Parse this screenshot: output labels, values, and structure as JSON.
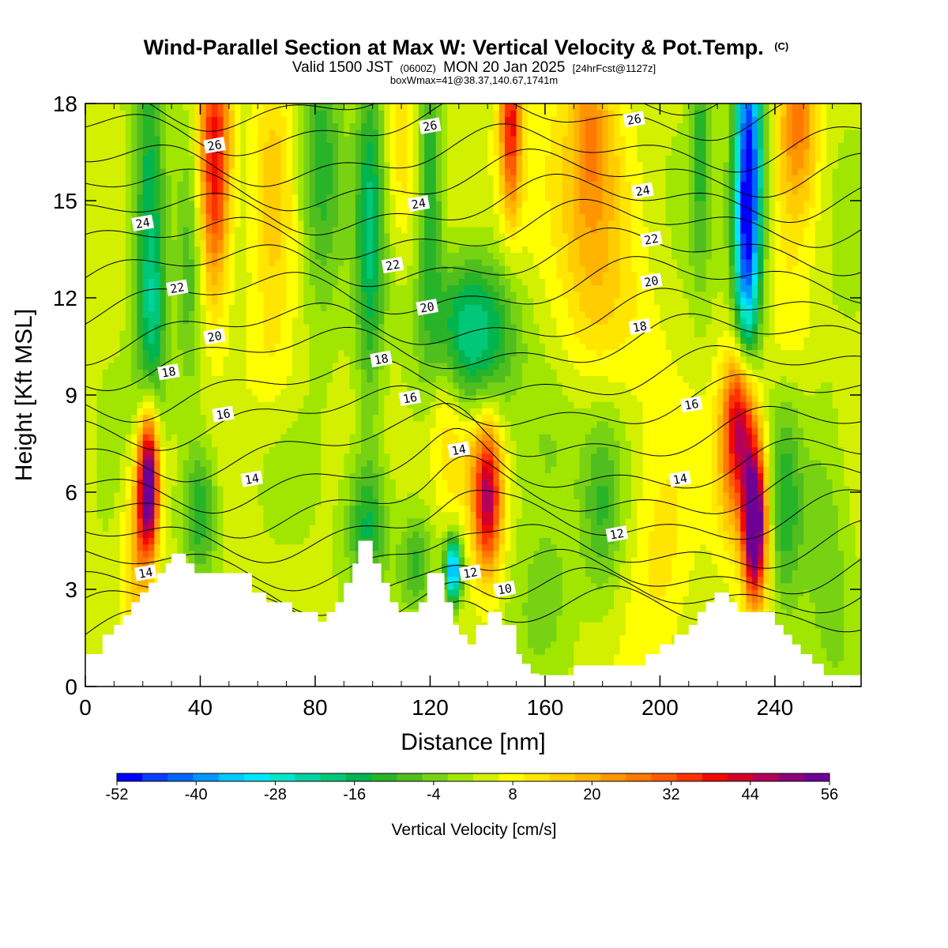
{
  "chart_data": {
    "type": "heatmap",
    "title": "Wind-Parallel Section at Max W: Vertical Velocity & Pot.Temp.",
    "title_mark": "(C)",
    "subtitle_valid": "Valid 1500 JST",
    "subtitle_utc": "(0600Z)",
    "subtitle_date": "MON 20 Jan 2025",
    "subtitle_fcst": "[24hrFcst@1127z]",
    "subtitle_box": "boxWmax=41@38.37,140.67,1741m",
    "xlabel": "Distance [nm]",
    "ylabel": "Height [Kft MSL]",
    "xlim": [
      0,
      270
    ],
    "ylim": [
      0,
      18
    ],
    "x_ticks": [
      0,
      40,
      80,
      120,
      160,
      200,
      240
    ],
    "x_tick_labels": [
      "0",
      "40",
      "80",
      "120",
      "160",
      "200",
      "240"
    ],
    "y_ticks": [
      0,
      3,
      6,
      9,
      12,
      15,
      18
    ],
    "y_tick_labels": [
      "0",
      "3",
      "6",
      "9",
      "12",
      "15",
      "18"
    ],
    "colorbar": {
      "title": "Vertical Velocity [cm/s]",
      "min": -52,
      "max": 56,
      "step": 4,
      "tick_values": [
        -52,
        -40,
        -28,
        -16,
        -4,
        8,
        20,
        32,
        44,
        56
      ],
      "tick_labels": [
        "-52",
        "-40",
        "-28",
        "-16",
        "-4",
        "8",
        "20",
        "32",
        "44",
        "56"
      ],
      "colors": [
        "#0000ff",
        "#0a3cff",
        "#0066ff",
        "#0096ff",
        "#00c8ff",
        "#00e6ff",
        "#00e6c8",
        "#00d2a0",
        "#00c878",
        "#00b450",
        "#28b428",
        "#50be1e",
        "#78d214",
        "#a0e600",
        "#d2f000",
        "#ffff00",
        "#ffe600",
        "#ffcd00",
        "#ffb400",
        "#ff9600",
        "#ff7800",
        "#ff5a00",
        "#ff3200",
        "#f00a00",
        "#d20028",
        "#b4005a",
        "#8c0078",
        "#6e0096"
      ]
    },
    "terrain": [
      [
        0,
        1.0
      ],
      [
        6,
        1.0
      ],
      [
        6,
        1.6
      ],
      [
        10,
        1.6
      ],
      [
        10,
        1.9
      ],
      [
        13,
        1.9
      ],
      [
        13,
        2.2
      ],
      [
        16,
        2.2
      ],
      [
        16,
        2.6
      ],
      [
        19,
        2.6
      ],
      [
        19,
        2.9
      ],
      [
        22,
        2.9
      ],
      [
        22,
        3.2
      ],
      [
        25,
        3.2
      ],
      [
        25,
        3.5
      ],
      [
        28,
        3.5
      ],
      [
        28,
        3.8
      ],
      [
        30,
        3.8
      ],
      [
        30,
        4.1
      ],
      [
        35,
        4.1
      ],
      [
        35,
        3.8
      ],
      [
        38,
        3.8
      ],
      [
        38,
        3.5
      ],
      [
        58,
        3.5
      ],
      [
        58,
        2.9
      ],
      [
        63,
        2.9
      ],
      [
        63,
        2.6
      ],
      [
        72,
        2.6
      ],
      [
        72,
        2.3
      ],
      [
        81,
        2.3
      ],
      [
        81,
        2.0
      ],
      [
        84,
        2.0
      ],
      [
        84,
        2.3
      ],
      [
        87,
        2.3
      ],
      [
        87,
        2.6
      ],
      [
        90,
        2.6
      ],
      [
        90,
        3.2
      ],
      [
        93,
        3.2
      ],
      [
        93,
        3.8
      ],
      [
        95,
        3.8
      ],
      [
        95,
        4.5
      ],
      [
        100,
        4.5
      ],
      [
        100,
        3.8
      ],
      [
        103,
        3.8
      ],
      [
        103,
        3.2
      ],
      [
        106,
        3.2
      ],
      [
        106,
        2.6
      ],
      [
        109,
        2.6
      ],
      [
        109,
        2.3
      ],
      [
        116,
        2.3
      ],
      [
        116,
        2.6
      ],
      [
        119,
        2.6
      ],
      [
        119,
        3.5
      ],
      [
        125,
        3.5
      ],
      [
        125,
        2.6
      ],
      [
        128,
        2.6
      ],
      [
        128,
        1.9
      ],
      [
        130,
        1.9
      ],
      [
        130,
        1.6
      ],
      [
        133,
        1.6
      ],
      [
        133,
        1.3
      ],
      [
        136,
        1.3
      ],
      [
        136,
        1.9
      ],
      [
        140,
        1.9
      ],
      [
        140,
        2.3
      ],
      [
        145,
        2.3
      ],
      [
        145,
        1.9
      ],
      [
        150,
        1.9
      ],
      [
        150,
        1.0
      ],
      [
        152,
        1.0
      ],
      [
        152,
        0.7
      ],
      [
        155,
        0.7
      ],
      [
        155,
        0.4
      ],
      [
        158,
        0.4
      ],
      [
        158,
        0.35
      ],
      [
        170,
        0.35
      ],
      [
        170,
        0.65
      ],
      [
        195,
        0.65
      ],
      [
        195,
        1.0
      ],
      [
        200,
        1.0
      ],
      [
        200,
        1.3
      ],
      [
        205,
        1.3
      ],
      [
        205,
        1.6
      ],
      [
        210,
        1.6
      ],
      [
        210,
        1.9
      ],
      [
        213,
        1.9
      ],
      [
        213,
        2.3
      ],
      [
        216,
        2.3
      ],
      [
        216,
        2.6
      ],
      [
        219,
        2.6
      ],
      [
        219,
        2.9
      ],
      [
        224,
        2.9
      ],
      [
        224,
        2.6
      ],
      [
        227,
        2.6
      ],
      [
        227,
        2.3
      ],
      [
        240,
        2.3
      ],
      [
        240,
        1.9
      ],
      [
        243,
        1.9
      ],
      [
        243,
        1.6
      ],
      [
        246,
        1.6
      ],
      [
        246,
        1.3
      ],
      [
        249,
        1.3
      ],
      [
        249,
        1.0
      ],
      [
        253,
        1.0
      ],
      [
        253,
        0.7
      ],
      [
        257,
        0.7
      ],
      [
        257,
        0.35
      ],
      [
        270,
        0.35
      ]
    ],
    "w_features": [
      {
        "x": 22,
        "y": 6.3,
        "sx": 2.6,
        "sy": 1.6,
        "amp": 62
      },
      {
        "x": 18,
        "y": 4.5,
        "sx": 3.5,
        "sy": 2.0,
        "amp": 16
      },
      {
        "x": 22,
        "y": 14.5,
        "sx": 4.0,
        "sy": 5.0,
        "amp": -20
      },
      {
        "x": 24,
        "y": 11.5,
        "sx": 3.0,
        "sy": 2.0,
        "amp": -10
      },
      {
        "x": 45,
        "y": 17.0,
        "sx": 4.0,
        "sy": 2.5,
        "amp": 34
      },
      {
        "x": 45,
        "y": 14.0,
        "sx": 3.5,
        "sy": 2.0,
        "amp": 14
      },
      {
        "x": 40,
        "y": 5.5,
        "sx": 4.0,
        "sy": 1.5,
        "amp": -18
      },
      {
        "x": 36,
        "y": 12.5,
        "sx": 3.0,
        "sy": 3.0,
        "amp": -10
      },
      {
        "x": 65,
        "y": 15.5,
        "sx": 5.0,
        "sy": 3.0,
        "amp": 12
      },
      {
        "x": 65,
        "y": 10.0,
        "sx": 8.0,
        "sy": 1.5,
        "amp": 5
      },
      {
        "x": 82,
        "y": 16.0,
        "sx": 5.0,
        "sy": 3.0,
        "amp": -16
      },
      {
        "x": 99,
        "y": 14.0,
        "sx": 3.5,
        "sy": 4.0,
        "amp": -20
      },
      {
        "x": 98,
        "y": 5.0,
        "sx": 5.0,
        "sy": 1.5,
        "amp": -18
      },
      {
        "x": 110,
        "y": 16.5,
        "sx": 4.0,
        "sy": 2.0,
        "amp": 10
      },
      {
        "x": 120,
        "y": 15.5,
        "sx": 3.0,
        "sy": 3.0,
        "amp": -18
      },
      {
        "x": 128,
        "y": 3.6,
        "sx": 2.0,
        "sy": 0.7,
        "amp": -44
      },
      {
        "x": 115,
        "y": 3.8,
        "sx": 4.0,
        "sy": 1.0,
        "amp": -14
      },
      {
        "x": 125,
        "y": 9.0,
        "sx": 4.0,
        "sy": 1.5,
        "amp": 8
      },
      {
        "x": 135,
        "y": 11.0,
        "sx": 11.0,
        "sy": 1.7,
        "amp": -26
      },
      {
        "x": 140,
        "y": 5.8,
        "sx": 3.5,
        "sy": 1.6,
        "amp": 44
      },
      {
        "x": 130,
        "y": 7.0,
        "sx": 7.0,
        "sy": 1.5,
        "amp": 12
      },
      {
        "x": 148,
        "y": 17.5,
        "sx": 2.5,
        "sy": 2.0,
        "amp": 34
      },
      {
        "x": 155,
        "y": 15.0,
        "sx": 10.0,
        "sy": 3.0,
        "amp": 8
      },
      {
        "x": 176,
        "y": 15.5,
        "sx": 8.0,
        "sy": 3.0,
        "amp": 16
      },
      {
        "x": 176,
        "y": 17.5,
        "sx": 4.0,
        "sy": 1.5,
        "amp": 10
      },
      {
        "x": 160,
        "y": 7.5,
        "sx": 8.0,
        "sy": 2.0,
        "amp": -8
      },
      {
        "x": 180,
        "y": 5.5,
        "sx": 5.0,
        "sy": 2.0,
        "amp": -12
      },
      {
        "x": 160,
        "y": 3.0,
        "sx": 7.0,
        "sy": 1.5,
        "amp": -6
      },
      {
        "x": 200,
        "y": 4.0,
        "sx": 8.0,
        "sy": 3.0,
        "amp": 8
      },
      {
        "x": 214,
        "y": 17.0,
        "sx": 2.5,
        "sy": 3.0,
        "amp": -14
      },
      {
        "x": 231,
        "y": 16.5,
        "sx": 3.5,
        "sy": 3.5,
        "amp": -48
      },
      {
        "x": 230,
        "y": 13.0,
        "sx": 3.0,
        "sy": 2.5,
        "amp": -26
      },
      {
        "x": 233,
        "y": 5.0,
        "sx": 2.8,
        "sy": 1.6,
        "amp": 66
      },
      {
        "x": 228,
        "y": 8.3,
        "sx": 4.0,
        "sy": 1.6,
        "amp": 38
      },
      {
        "x": 226,
        "y": 6.5,
        "sx": 5.0,
        "sy": 2.0,
        "amp": 14
      },
      {
        "x": 244,
        "y": 5.5,
        "sx": 4.0,
        "sy": 2.5,
        "amp": -14
      },
      {
        "x": 258,
        "y": 4.5,
        "sx": 6.0,
        "sy": 3.0,
        "amp": -8
      },
      {
        "x": 248,
        "y": 17.5,
        "sx": 5.0,
        "sy": 2.0,
        "amp": 24
      },
      {
        "x": 245,
        "y": 11.0,
        "sx": 6.0,
        "sy": 2.0,
        "amp": 6
      },
      {
        "x": 185,
        "y": 11.0,
        "sx": 12.0,
        "sy": 2.0,
        "amp": 6
      }
    ],
    "potential_temperature": {
      "units": "C",
      "levels": [
        8,
        9,
        10,
        11,
        12,
        13,
        14,
        15,
        16,
        17,
        18,
        19,
        20,
        21,
        22,
        23,
        24,
        25,
        26,
        27
      ],
      "base_heights": [
        1.6,
        2.2,
        2.8,
        3.6,
        4.5,
        5.3,
        6.1,
        7.1,
        8.1,
        9.0,
        10.0,
        10.8,
        11.8,
        12.7,
        13.6,
        14.4,
        15.2,
        16.0,
        17.0,
        17.8
      ],
      "labels": [
        {
          "text": "26",
          "x": 45,
          "y": 16.7
        },
        {
          "text": "26",
          "x": 120,
          "y": 17.3
        },
        {
          "text": "26",
          "x": 191,
          "y": 17.5
        },
        {
          "text": "24",
          "x": 20,
          "y": 14.3
        },
        {
          "text": "24",
          "x": 116,
          "y": 14.9
        },
        {
          "text": "24",
          "x": 194,
          "y": 15.3
        },
        {
          "text": "22",
          "x": 32,
          "y": 12.3
        },
        {
          "text": "22",
          "x": 107,
          "y": 13.0
        },
        {
          "text": "22",
          "x": 197,
          "y": 13.8
        },
        {
          "text": "20",
          "x": 45,
          "y": 10.8
        },
        {
          "text": "20",
          "x": 119,
          "y": 11.7
        },
        {
          "text": "20",
          "x": 197,
          "y": 12.5
        },
        {
          "text": "18",
          "x": 29,
          "y": 9.7
        },
        {
          "text": "18",
          "x": 103,
          "y": 10.1
        },
        {
          "text": "18",
          "x": 193,
          "y": 11.1
        },
        {
          "text": "16",
          "x": 48,
          "y": 8.4
        },
        {
          "text": "16",
          "x": 113,
          "y": 8.9
        },
        {
          "text": "16",
          "x": 211,
          "y": 8.7
        },
        {
          "text": "14",
          "x": 58,
          "y": 6.4
        },
        {
          "text": "14",
          "x": 130,
          "y": 7.3
        },
        {
          "text": "14",
          "x": 207,
          "y": 6.4
        },
        {
          "text": "14",
          "x": 21,
          "y": 3.5
        },
        {
          "text": "12",
          "x": 185,
          "y": 4.7
        },
        {
          "text": "12",
          "x": 134,
          "y": 3.5
        },
        {
          "text": "10",
          "x": 146,
          "y": 3.0
        }
      ]
    }
  }
}
